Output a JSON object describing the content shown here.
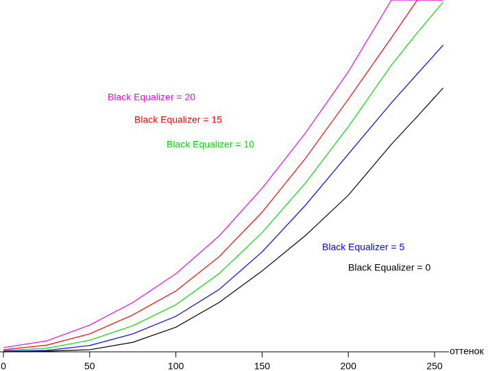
{
  "chart_data": {
    "type": "line",
    "x_label": "оттенок",
    "x": [
      0,
      25,
      50,
      75,
      100,
      125,
      150,
      175,
      200,
      225,
      240,
      255
    ],
    "xlim": [
      0,
      255
    ],
    "xticks": [
      0,
      50,
      100,
      150,
      200,
      250
    ],
    "ylim": [
      0,
      100
    ],
    "series": [
      {
        "name": "Black Equalizer = 0",
        "color": "#000000",
        "values": [
          0,
          0.2,
          0.6,
          2.7,
          7,
          14,
          23,
          33,
          44.5,
          59,
          66.9,
          75
        ]
      },
      {
        "name": "Black Equalizer = 5",
        "color": "#0000ff",
        "values": [
          0.2,
          0.4,
          1.8,
          5.1,
          10.1,
          17.7,
          28.4,
          41.6,
          56.2,
          70.8,
          79,
          87.2
        ]
      },
      {
        "name": "Black Equalizer = 10",
        "color": "#00dd00",
        "values": [
          0.4,
          1,
          3.3,
          7.4,
          13.4,
          22.2,
          33.9,
          47.9,
          64,
          81.5,
          90.7,
          99.4
        ]
      },
      {
        "name": "Black Equalizer = 15",
        "color": "#ff0000",
        "values": [
          0.6,
          1.9,
          5.1,
          10.5,
          17.3,
          27,
          39.7,
          54.9,
          71.8,
          89.3,
          100,
          100
        ]
      },
      {
        "name": "Black Equalizer = 20",
        "color": "#ee00ee",
        "values": [
          1.2,
          3.1,
          7.6,
          14,
          22.2,
          32.9,
          46.5,
          62.1,
          79.6,
          100,
          100,
          100
        ]
      }
    ]
  }
}
